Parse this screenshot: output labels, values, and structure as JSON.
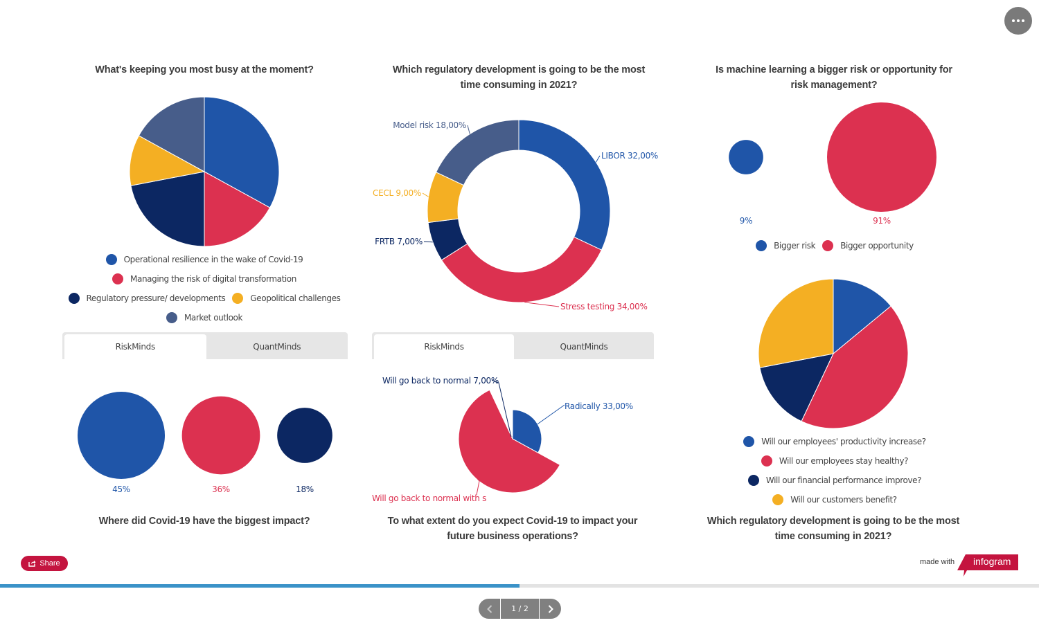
{
  "colors": {
    "blue": "#1f55a8",
    "red": "#dc3150",
    "navy": "#0c2762",
    "yellow": "#f4af23",
    "slate": "#475d8a",
    "brand": "#c4143f",
    "progress": "#3a92c8"
  },
  "header": {
    "more_button_icon": "more-horizontal-icon"
  },
  "tabs_left": [
    {
      "label": "RiskMinds",
      "active": true
    },
    {
      "label": "QuantMinds",
      "active": false
    }
  ],
  "tabs_middle": [
    {
      "label": "RiskMinds",
      "active": true
    },
    {
      "label": "QuantMinds",
      "active": false
    }
  ],
  "chart_data": [
    {
      "id": "busy",
      "type": "pie",
      "title": "What's keeping you most busy at the moment?",
      "labels": [
        "Operational resilience in the wake of Covid-19",
        "Managing the risk of digital transformation",
        "Regulatory pressure/ developments",
        "Geopolitical challenges",
        "Market outlook"
      ],
      "values": [
        33,
        17,
        22,
        11,
        17
      ],
      "colors": [
        "#1f55a8",
        "#dc3150",
        "#0c2762",
        "#f4af23",
        "#475d8a"
      ],
      "legend": "bottom"
    },
    {
      "id": "regulatory",
      "type": "pie",
      "subtype": "donut",
      "title": "Which regulatory development is going to be the most time consuming in 2021?",
      "labels": [
        "LIBOR",
        "Stress testing",
        "FRTB",
        "CECL",
        "Model risk"
      ],
      "values": [
        32,
        34,
        7,
        9,
        18
      ],
      "data_labels": [
        "LIBOR 32,00%",
        "Stress testing 34,00%",
        "FRTB 7,00%",
        "CECL 9,00%",
        "Model risk 18,00%"
      ],
      "colors": [
        "#1f55a8",
        "#dc3150",
        "#0c2762",
        "#f4af23",
        "#475d8a"
      ]
    },
    {
      "id": "ml",
      "type": "bubble",
      "title": "Is machine learning a bigger risk or opportunity for risk management?",
      "labels": [
        "Bigger risk",
        "Bigger opportunity"
      ],
      "values": [
        9,
        91
      ],
      "data_labels": [
        "9%",
        "91%"
      ],
      "colors": [
        "#1f55a8",
        "#dc3150"
      ],
      "legend": "bottom"
    },
    {
      "id": "covid_impact",
      "type": "bubble",
      "title": "Where did Covid-19 have the biggest impact?",
      "values": [
        45,
        36,
        18
      ],
      "data_labels": [
        "45%",
        "36%",
        "18%"
      ],
      "colors": [
        "#1f55a8",
        "#dc3150",
        "#0c2762"
      ]
    },
    {
      "id": "future_ops",
      "type": "pie",
      "subtype": "rose",
      "title": "To what extent do you expect Covid-19 to impact your future business operations?",
      "labels": [
        "Radically",
        "Will go back to normal with s",
        "Will go back to normal"
      ],
      "values": [
        33,
        60,
        7
      ],
      "data_labels": [
        "Radically 33,00%",
        "Will go back to normal with s",
        "Will go back to normal 7,00%"
      ],
      "colors": [
        "#1f55a8",
        "#dc3150",
        "#0c2762"
      ]
    },
    {
      "id": "concerns",
      "type": "pie",
      "title": "Which regulatory development is going to be the most time consuming in 2021?",
      "labels": [
        "Will our employees' productivity increase?",
        "Will our employees stay healthy?",
        "Will our financial performance improve?",
        "Will our customers benefit?"
      ],
      "values": [
        14,
        43,
        15,
        28
      ],
      "colors": [
        "#1f55a8",
        "#dc3150",
        "#0c2762",
        "#f4af23"
      ],
      "legend": "bottom"
    }
  ],
  "footer": {
    "share_label": "Share",
    "made_with": "made with",
    "brand": "infogram",
    "progress": 0.5,
    "page_indicator": "1 / 2"
  }
}
